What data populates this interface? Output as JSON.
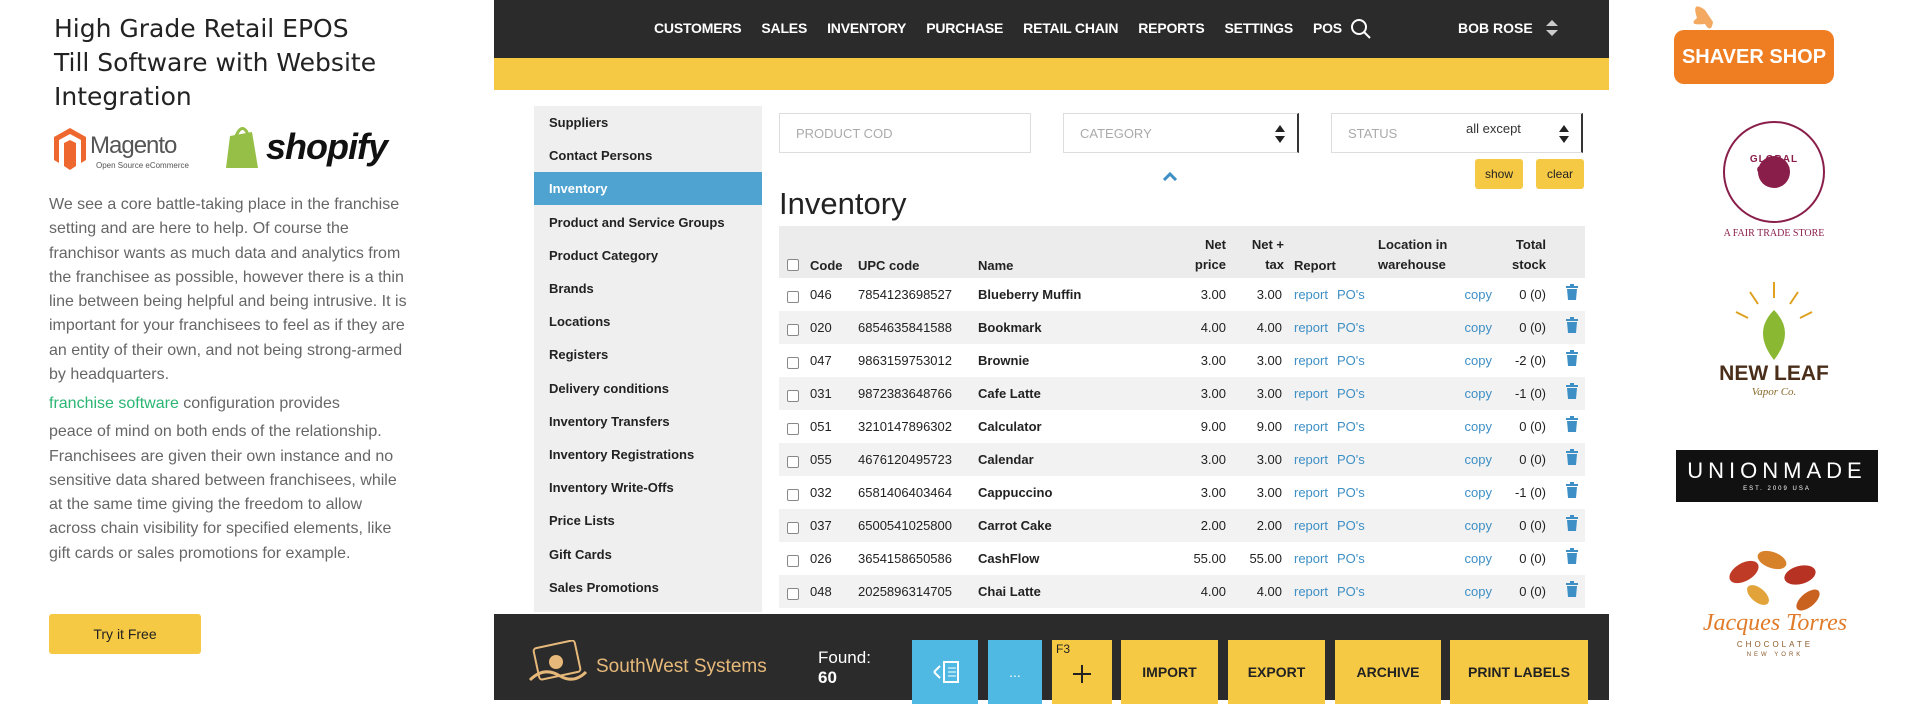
{
  "intro": {
    "title": "High Grade Retail EPOS Till Software with Website Integration",
    "magento": "Magento",
    "magento_sub": "Open Source eCommerce",
    "shopify": "shopify",
    "paragraph1": "We see a core battle-taking place in the franchise setting and are here to help. Of course the franchisor wants as much data and analytics from the franchisee as possible, however there is a thin line between being helpful and being intrusive. It is important for your franchisees to feel as if they are an entity of their own, and not being strong-armed by headquarters.",
    "link": "franchise software",
    "link_suffix": "configuration provides",
    "paragraph2": "peace of mind on both ends of the relationship. Franchisees are given their own instance and no sensitive data shared between franchisees, while at the same time giving the freedom to allow across chain visibility for specified elements, like gift cards or sales promotions for example.",
    "button": "Try it Free"
  },
  "nav": {
    "items": [
      "CUSTOMERS",
      "SALES",
      "INVENTORY",
      "PURCHASE",
      "RETAIL CHAIN",
      "REPORTS",
      "SETTINGS",
      "POS"
    ],
    "user": "BOB ROSE"
  },
  "sidebar": {
    "items": [
      "Suppliers",
      "Contact Persons",
      "Inventory",
      "Product and Service Groups",
      "Product Category",
      "Brands",
      "Locations",
      "Registers",
      "Delivery conditions",
      "Inventory Transfers",
      "Inventory Registrations",
      "Inventory Write-Offs",
      "Price Lists",
      "Gift Cards",
      "Sales Promotions"
    ],
    "active": 2
  },
  "filters": {
    "product_code": "PRODUCT COD",
    "category": "CATEGORY",
    "status": "STATUS",
    "status_value": "all except",
    "show": "show",
    "clear": "clear"
  },
  "heading": "Inventory",
  "table": {
    "headers": [
      "Code",
      "UPC code",
      "Name",
      "Net price",
      "Net + tax",
      "Report",
      "Location in warehouse",
      "Total stock"
    ],
    "links": {
      "report": "report",
      "pos": "PO's",
      "copy": "copy"
    },
    "rows": [
      [
        "046",
        "7854123698527",
        "Blueberry Muffin",
        "3.00",
        "3.00",
        "0 (0)"
      ],
      [
        "020",
        "6854635841588",
        "Bookmark",
        "4.00",
        "4.00",
        "0 (0)"
      ],
      [
        "047",
        "9863159753012",
        "Brownie",
        "3.00",
        "3.00",
        "-2 (0)"
      ],
      [
        "031",
        "9872383648766",
        "Cafe Latte",
        "3.00",
        "3.00",
        "-1 (0)"
      ],
      [
        "051",
        "3210147896302",
        "Calculator",
        "9.00",
        "9.00",
        "0 (0)"
      ],
      [
        "055",
        "4676120495723",
        "Calendar",
        "3.00",
        "3.00",
        "0 (0)"
      ],
      [
        "032",
        "6581406403464",
        "Cappuccino",
        "3.00",
        "3.00",
        "-1 (0)"
      ],
      [
        "037",
        "6500541025800",
        "Carrot Cake",
        "2.00",
        "2.00",
        "0 (0)"
      ],
      [
        "026",
        "3654158650586",
        "CashFlow",
        "55.00",
        "55.00",
        "0 (0)"
      ],
      [
        "048",
        "2025896314705",
        "Chai Latte",
        "4.00",
        "4.00",
        "0 (0)"
      ]
    ]
  },
  "footer": {
    "brand": "SouthWest Systems",
    "found_label": "Found:",
    "found_value": "60",
    "more": "...",
    "shortcut": "F3",
    "buttons": [
      "IMPORT",
      "EXPORT",
      "ARCHIVE",
      "PRINT LABELS"
    ]
  },
  "logos": {
    "shaver": "SHAVER SHOP",
    "global": "GLOBAL GIFTS",
    "global_sub": "A FAIR TRADE STORE",
    "newleaf": "NEW LEAF",
    "newleaf_sub": "Vapor Co.",
    "unionmade": "UNIONMADE",
    "unionmade_sub": "EST. 2009 USA",
    "jacques": "Jacques Torres",
    "jacques_sub": "CHOCOLATE",
    "jacques_sub2": "NEW YORK"
  }
}
